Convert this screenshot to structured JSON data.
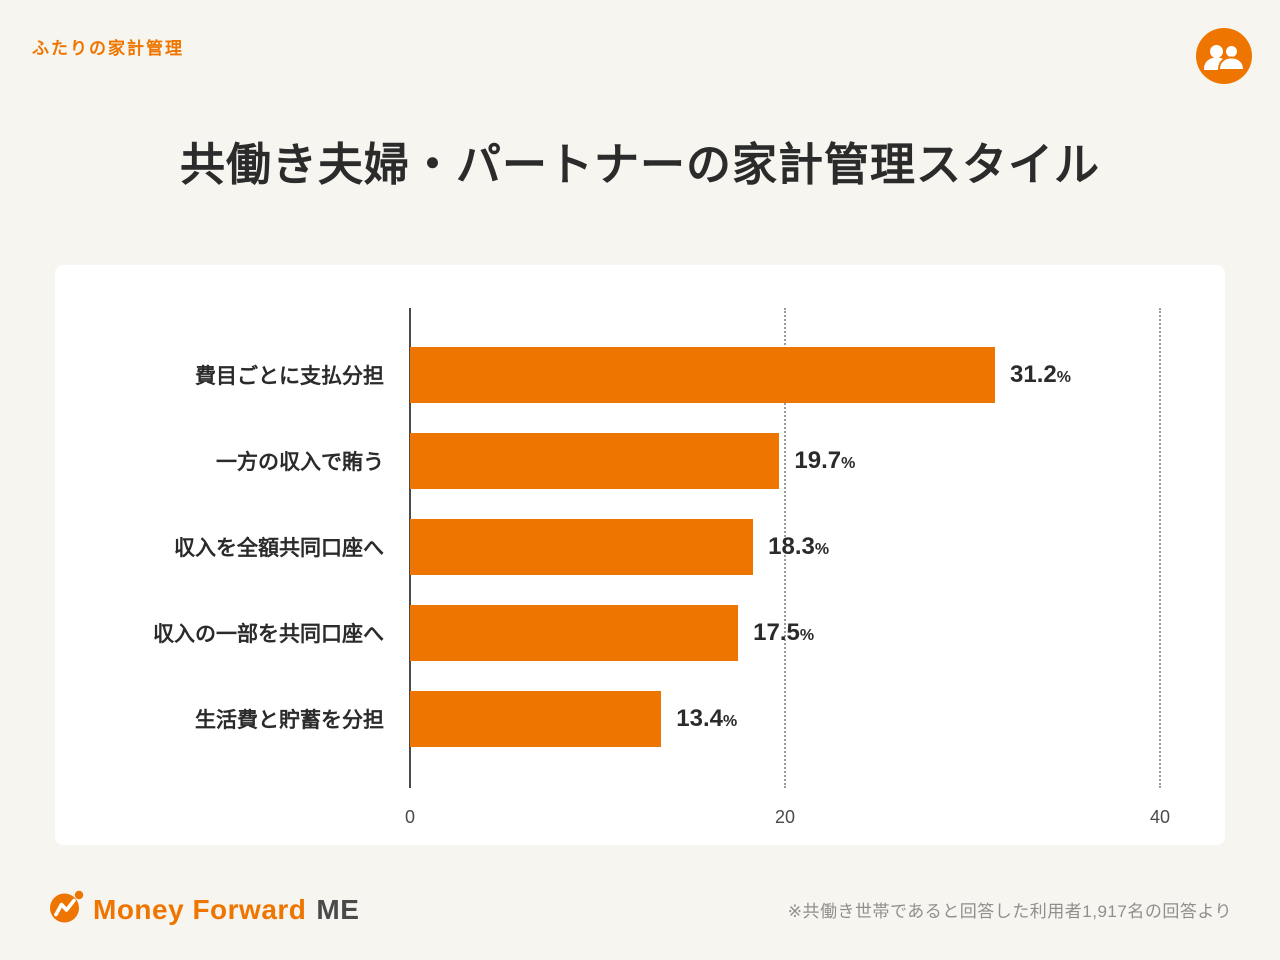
{
  "page": {
    "eyebrow": "ふたりの家計管理",
    "title": "共働き夫婦・パートナーの家計管理スタイル",
    "footnote": "※共働き世帯であると回答した利用者1,917名の回答より"
  },
  "logo": {
    "wordmark": "Money Forward",
    "suffix": "ME",
    "mark_icon": "money-forward-mark"
  },
  "icons": {
    "top_right": "couple-two-people-icon"
  },
  "colors": {
    "accent_orange": "#EE7600",
    "background": "#F7F5F0",
    "card": "#FFFFFF",
    "text_dark": "#2B2B2B",
    "note_gray": "#8F8F8F"
  },
  "chart_data": {
    "type": "bar",
    "orientation": "horizontal",
    "title": "共働き夫婦・パートナーの家計管理スタイル",
    "categories": [
      "費目ごとに支払分担",
      "一方の収入で賄う",
      "収入を全額共同口座へ",
      "収入の一部を共同口座へ",
      "生活費と貯蓄を分担"
    ],
    "values": [
      31.2,
      19.7,
      18.3,
      17.5,
      13.4
    ],
    "unit": "%",
    "xlabel": "",
    "ylabel": "",
    "xlim": [
      0,
      40
    ],
    "xticks": [
      0,
      20,
      40
    ],
    "bar_color": "#EE7600",
    "grid": "dotted vertical gridlines at 20 and 40",
    "legend": "none"
  }
}
